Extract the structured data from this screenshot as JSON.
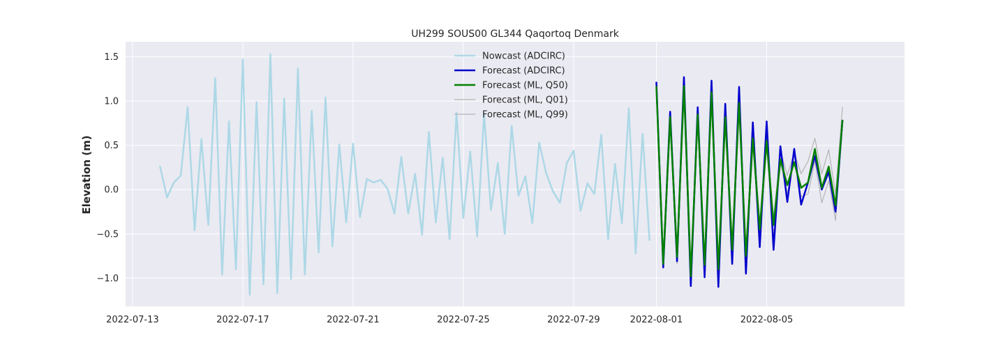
{
  "chart_data": {
    "type": "line",
    "title": "UH299 SOUS00 GL344 Qaqortoq Denmark",
    "xlabel": "",
    "ylabel": "Elevation (m)",
    "xlim": [
      "2022-07-12T18:00",
      "2022-08-10T00:00"
    ],
    "ylim": [
      -1.32,
      1.67
    ],
    "x_ticks": [
      "2022-07-13",
      "2022-07-17",
      "2022-07-21",
      "2022-07-25",
      "2022-07-29",
      "2022-08-01",
      "2022-08-05"
    ],
    "y_ticks": [
      -1.0,
      -0.5,
      0.0,
      0.5,
      1.0,
      1.5
    ],
    "y_tick_labels": [
      "−1.0",
      "−0.5",
      "0.0",
      "0.5",
      "1.0",
      "1.5"
    ],
    "grid": true,
    "background": "#eaeaf2",
    "legend_position": "top-center",
    "series": [
      {
        "name": "Nowcast (ADCIRC)",
        "color": "#add8e6",
        "linewidth": 2.5,
        "x": [
          "2022-07-14T00:00",
          "2022-07-14T06:00",
          "2022-07-14T12:00",
          "2022-07-14T18:00",
          "2022-07-15T00:00",
          "2022-07-15T06:00",
          "2022-07-15T12:00",
          "2022-07-15T18:00",
          "2022-07-16T00:00",
          "2022-07-16T06:00",
          "2022-07-16T12:00",
          "2022-07-16T18:00",
          "2022-07-17T00:00",
          "2022-07-17T06:00",
          "2022-07-17T12:00",
          "2022-07-17T18:00",
          "2022-07-18T00:00",
          "2022-07-18T06:00",
          "2022-07-18T12:00",
          "2022-07-18T18:00",
          "2022-07-19T00:00",
          "2022-07-19T06:00",
          "2022-07-19T12:00",
          "2022-07-19T18:00",
          "2022-07-20T00:00",
          "2022-07-20T06:00",
          "2022-07-20T12:00",
          "2022-07-20T18:00",
          "2022-07-21T00:00",
          "2022-07-21T06:00",
          "2022-07-21T12:00",
          "2022-07-21T18:00",
          "2022-07-22T00:00",
          "2022-07-22T06:00",
          "2022-07-22T12:00",
          "2022-07-22T18:00",
          "2022-07-23T00:00",
          "2022-07-23T06:00",
          "2022-07-23T12:00",
          "2022-07-23T18:00",
          "2022-07-24T00:00",
          "2022-07-24T06:00",
          "2022-07-24T12:00",
          "2022-07-24T18:00",
          "2022-07-25T00:00",
          "2022-07-25T06:00",
          "2022-07-25T12:00",
          "2022-07-25T18:00",
          "2022-07-26T00:00",
          "2022-07-26T06:00",
          "2022-07-26T12:00",
          "2022-07-26T18:00",
          "2022-07-27T00:00",
          "2022-07-27T06:00",
          "2022-07-27T12:00",
          "2022-07-27T18:00",
          "2022-07-28T00:00",
          "2022-07-28T06:00",
          "2022-07-28T12:00",
          "2022-07-28T18:00",
          "2022-07-29T00:00",
          "2022-07-29T06:00",
          "2022-07-29T12:00",
          "2022-07-29T18:00",
          "2022-07-30T00:00",
          "2022-07-30T06:00",
          "2022-07-30T12:00",
          "2022-07-30T18:00",
          "2022-07-31T00:00",
          "2022-07-31T06:00",
          "2022-07-31T12:00",
          "2022-07-31T18:00"
        ],
        "y": [
          0.26,
          -0.09,
          0.08,
          0.16,
          0.93,
          -0.46,
          0.57,
          -0.4,
          1.26,
          -0.96,
          0.77,
          -0.9,
          1.47,
          -1.19,
          0.99,
          -1.07,
          1.53,
          -1.17,
          1.03,
          -1.01,
          1.37,
          -0.96,
          0.89,
          -0.71,
          1.04,
          -0.64,
          0.51,
          -0.37,
          0.52,
          -0.31,
          0.12,
          0.08,
          0.11,
          0.01,
          -0.27,
          0.37,
          -0.27,
          0.18,
          -0.51,
          0.65,
          -0.37,
          0.36,
          -0.56,
          0.87,
          -0.32,
          0.43,
          -0.53,
          0.86,
          -0.23,
          0.3,
          -0.5,
          0.72,
          -0.07,
          0.15,
          -0.38,
          0.53,
          0.19,
          -0.02,
          -0.15,
          0.3,
          0.44,
          -0.24,
          0.07,
          -0.05,
          0.62,
          -0.56,
          0.29,
          -0.38,
          0.92,
          -0.72,
          0.63,
          -0.57
        ]
      },
      {
        "name": "Forecast (ADCIRC)",
        "color": "#0000cd",
        "linewidth": 2.5,
        "x": [
          "2022-08-01T00:00",
          "2022-08-01T06:00",
          "2022-08-01T12:00",
          "2022-08-01T18:00",
          "2022-08-02T00:00",
          "2022-08-02T06:00",
          "2022-08-02T12:00",
          "2022-08-02T18:00",
          "2022-08-03T00:00",
          "2022-08-03T06:00",
          "2022-08-03T12:00",
          "2022-08-03T18:00",
          "2022-08-04T00:00",
          "2022-08-04T06:00",
          "2022-08-04T12:00",
          "2022-08-04T18:00",
          "2022-08-05T00:00",
          "2022-08-05T06:00",
          "2022-08-05T12:00",
          "2022-08-05T18:00",
          "2022-08-06T00:00",
          "2022-08-06T06:00",
          "2022-08-06T12:00",
          "2022-08-06T18:00",
          "2022-08-07T00:00",
          "2022-08-07T06:00",
          "2022-08-07T12:00",
          "2022-08-07T18:00"
        ],
        "y": [
          1.21,
          -0.88,
          0.88,
          -0.81,
          1.27,
          -1.09,
          0.93,
          -0.99,
          1.23,
          -1.1,
          0.97,
          -0.84,
          1.16,
          -0.95,
          0.76,
          -0.65,
          0.77,
          -0.68,
          0.49,
          -0.14,
          0.46,
          -0.17,
          0.08,
          0.38,
          0.0,
          0.2,
          -0.25,
          0.78
        ]
      },
      {
        "name": "Forecast (ML, Q50)",
        "color": "#008000",
        "linewidth": 2.5,
        "x": [
          "2022-08-01T00:00",
          "2022-08-01T06:00",
          "2022-08-01T12:00",
          "2022-08-01T18:00",
          "2022-08-02T00:00",
          "2022-08-02T06:00",
          "2022-08-02T12:00",
          "2022-08-02T18:00",
          "2022-08-03T00:00",
          "2022-08-03T06:00",
          "2022-08-03T12:00",
          "2022-08-03T18:00",
          "2022-08-04T00:00",
          "2022-08-04T06:00",
          "2022-08-04T12:00",
          "2022-08-04T18:00",
          "2022-08-05T00:00",
          "2022-08-05T06:00",
          "2022-08-05T12:00",
          "2022-08-05T18:00",
          "2022-08-06T00:00",
          "2022-08-06T06:00",
          "2022-08-06T12:00",
          "2022-08-06T18:00",
          "2022-08-07T00:00",
          "2022-08-07T06:00",
          "2022-08-07T12:00",
          "2022-08-07T18:00"
        ],
        "y": [
          1.16,
          -0.84,
          0.82,
          -0.76,
          1.17,
          -0.98,
          0.85,
          -0.85,
          1.1,
          -0.9,
          0.82,
          -0.68,
          0.98,
          -0.75,
          0.58,
          -0.45,
          0.55,
          -0.4,
          0.34,
          0.05,
          0.31,
          0.02,
          0.08,
          0.46,
          0.02,
          0.26,
          -0.18,
          0.78
        ]
      },
      {
        "name": "Forecast (ML, Q01)",
        "color": "#b4b4b4",
        "linewidth": 1.2,
        "x": [
          "2022-08-01T00:00",
          "2022-08-01T06:00",
          "2022-08-01T12:00",
          "2022-08-01T18:00",
          "2022-08-02T00:00",
          "2022-08-02T06:00",
          "2022-08-02T12:00",
          "2022-08-02T18:00",
          "2022-08-03T00:00",
          "2022-08-03T06:00",
          "2022-08-03T12:00",
          "2022-08-03T18:00",
          "2022-08-04T00:00",
          "2022-08-04T06:00",
          "2022-08-04T12:00",
          "2022-08-04T18:00",
          "2022-08-05T00:00",
          "2022-08-05T06:00",
          "2022-08-05T12:00",
          "2022-08-05T18:00",
          "2022-08-06T00:00",
          "2022-08-06T06:00",
          "2022-08-06T12:00",
          "2022-08-06T18:00",
          "2022-08-07T00:00",
          "2022-08-07T06:00",
          "2022-08-07T12:00",
          "2022-08-07T18:00"
        ],
        "y": [
          1.13,
          -0.87,
          0.8,
          -0.84,
          1.14,
          -1.0,
          0.8,
          -0.92,
          1.08,
          -0.98,
          0.76,
          -0.74,
          0.92,
          -0.86,
          0.52,
          -0.58,
          0.48,
          -0.52,
          0.3,
          -0.04,
          0.32,
          -0.08,
          -0.05,
          0.32,
          -0.15,
          0.1,
          -0.35,
          0.72
        ]
      },
      {
        "name": "Forecast (ML, Q99)",
        "color": "#b4b4b4",
        "linewidth": 1.2,
        "x": [
          "2022-08-01T00:00",
          "2022-08-01T06:00",
          "2022-08-01T12:00",
          "2022-08-01T18:00",
          "2022-08-02T00:00",
          "2022-08-02T06:00",
          "2022-08-02T12:00",
          "2022-08-02T18:00",
          "2022-08-03T00:00",
          "2022-08-03T06:00",
          "2022-08-03T12:00",
          "2022-08-03T18:00",
          "2022-08-04T00:00",
          "2022-08-04T06:00",
          "2022-08-04T12:00",
          "2022-08-04T18:00",
          "2022-08-05T00:00",
          "2022-08-05T06:00",
          "2022-08-05T12:00",
          "2022-08-05T18:00",
          "2022-08-06T00:00",
          "2022-08-06T06:00",
          "2022-08-06T12:00",
          "2022-08-06T18:00",
          "2022-08-07T00:00",
          "2022-08-07T06:00",
          "2022-08-07T12:00",
          "2022-08-07T18:00"
        ],
        "y": [
          1.2,
          -0.8,
          0.88,
          -0.7,
          1.22,
          -0.92,
          0.92,
          -0.8,
          1.15,
          -0.82,
          0.9,
          -0.6,
          1.05,
          -0.66,
          0.66,
          -0.36,
          0.62,
          -0.32,
          0.44,
          0.16,
          0.42,
          0.18,
          0.32,
          0.58,
          0.18,
          0.45,
          -0.05,
          0.93
        ]
      }
    ]
  }
}
